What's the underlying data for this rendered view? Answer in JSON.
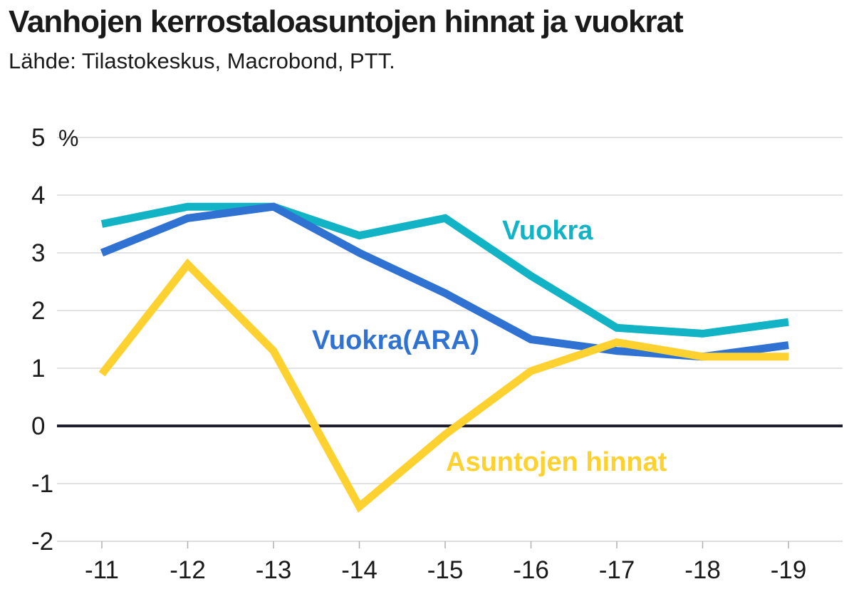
{
  "title": "Vanhojen kerrostaloasuntojen hinnat ja vuokrat",
  "subtitle": "Lähde: Tilastokeskus, Macrobond, PTT.",
  "chart_data": {
    "type": "line",
    "title": "Vanhojen kerrostaloasuntojen hinnat ja vuokrat",
    "subtitle": "Lähde: Tilastokeskus, Macrobond, PTT.",
    "ylabel": "%",
    "xlabel": "",
    "ylim": [
      -2,
      5
    ],
    "yticks": [
      -2,
      -1,
      0,
      1,
      2,
      3,
      4,
      5
    ],
    "ytick_labels": [
      "-2",
      "-1",
      "0",
      "1",
      "2",
      "3",
      "4",
      "5"
    ],
    "y_unit_label": "%",
    "categories": [
      "-11",
      "-12",
      "-13",
      "-14",
      "-15",
      "-16",
      "-17",
      "-18",
      "-19"
    ],
    "grid": true,
    "series": [
      {
        "name": "Vuokra",
        "color": "#12B3C4",
        "values": [
          3.5,
          3.8,
          3.8,
          3.3,
          3.6,
          2.6,
          1.7,
          1.6,
          1.8
        ]
      },
      {
        "name": "Vuokra(ARA)",
        "color": "#2F72D2",
        "values": [
          3.0,
          3.6,
          3.8,
          3.0,
          2.3,
          1.5,
          1.3,
          1.2,
          1.4
        ]
      },
      {
        "name": "Asuntojen hinnat",
        "color": "#FDD130",
        "values": [
          0.9,
          2.8,
          1.3,
          -1.4,
          -0.15,
          0.95,
          1.45,
          1.2,
          1.2
        ]
      }
    ],
    "colors": {
      "grid": "#d9d9d9",
      "zero_line": "#1f1f2e",
      "text": "#1a1a1a"
    }
  }
}
